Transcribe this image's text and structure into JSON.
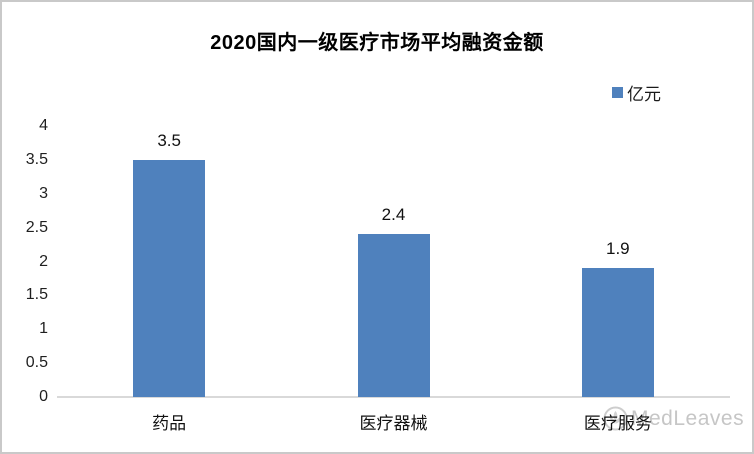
{
  "window": {
    "background": "#ffffff",
    "border_color": "#c9c9c9"
  },
  "chart_data": {
    "type": "bar",
    "title": "2020国内一级医疗市场平均融资金额",
    "categories": [
      "药品",
      "医疗器械",
      "医疗服务"
    ],
    "values": [
      3.5,
      2.4,
      1.9
    ],
    "data_labels": [
      "3.5",
      "2.4",
      "1.9"
    ],
    "series": [
      {
        "name": "亿元",
        "values": [
          3.5,
          2.4,
          1.9
        ]
      }
    ],
    "legend": {
      "label": "亿元",
      "color": "#4f81bd",
      "position": "top-right"
    },
    "y_axis": {
      "min": 0,
      "max": 4,
      "step": 0.5,
      "ticks": [
        "0",
        "0.5",
        "1",
        "1.5",
        "2",
        "2.5",
        "3",
        "3.5",
        "4"
      ]
    },
    "xlabel": "",
    "ylabel": "",
    "bar_color": "#4f81bd",
    "axis_line_color": "#d9d9d9",
    "gridlines": false
  },
  "watermark": {
    "text": "MedLeaves",
    "color": "#c6c6c6"
  }
}
